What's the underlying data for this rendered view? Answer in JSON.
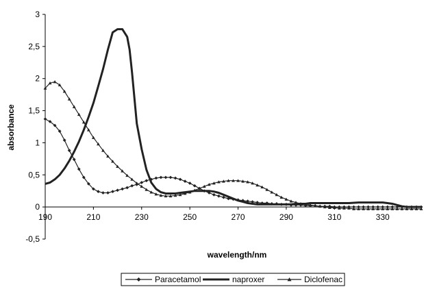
{
  "chart_data": {
    "type": "line",
    "title": "",
    "xlabel": "wavelength/nm",
    "ylabel": "absorbance",
    "xlim": [
      190,
      346
    ],
    "ylim": [
      -0.5,
      3
    ],
    "x_ticks": [
      "190",
      "210",
      "230",
      "250",
      "270",
      "290",
      "310",
      "330"
    ],
    "y_ticks": [
      "-0,5",
      "0",
      "0,5",
      "1",
      "1,5",
      "2",
      "2,5",
      "3"
    ],
    "grid": false,
    "legend_position": "bottom",
    "series": [
      {
        "name": "Paracetamol",
        "marker": "diamond",
        "x": [
          190,
          192,
          194,
          196,
          198,
          200,
          202,
          204,
          206,
          208,
          210,
          212,
          214,
          216,
          218,
          220,
          222,
          224,
          226,
          228,
          230,
          232,
          234,
          236,
          238,
          240,
          242,
          244,
          246,
          248,
          250,
          252,
          254,
          256,
          258,
          260,
          262,
          264,
          266,
          268,
          270,
          272,
          274,
          276,
          278,
          280,
          282,
          284,
          286,
          288,
          290,
          292,
          294,
          296,
          298,
          300,
          302,
          304,
          306,
          308,
          310,
          312,
          314,
          316,
          318,
          320,
          322,
          324,
          326,
          328,
          330,
          332,
          334,
          336,
          338,
          340,
          342,
          344,
          346
        ],
        "y": [
          1.37,
          1.33,
          1.27,
          1.18,
          1.04,
          0.88,
          0.74,
          0.59,
          0.46,
          0.36,
          0.28,
          0.24,
          0.22,
          0.22,
          0.24,
          0.26,
          0.28,
          0.3,
          0.33,
          0.35,
          0.38,
          0.41,
          0.43,
          0.45,
          0.46,
          0.46,
          0.46,
          0.45,
          0.43,
          0.4,
          0.37,
          0.33,
          0.29,
          0.25,
          0.22,
          0.19,
          0.17,
          0.15,
          0.13,
          0.12,
          0.11,
          0.1,
          0.09,
          0.08,
          0.07,
          0.06,
          0.06,
          0.05,
          0.05,
          0.04,
          0.04,
          0.03,
          0.03,
          0.03,
          0.02,
          0.02,
          0.02,
          0.01,
          0.01,
          0.01,
          0.0,
          0.0,
          0.0,
          0.0,
          0.0,
          0.0,
          0.0,
          0.0,
          0.0,
          0.0,
          0.0,
          0.0,
          0.0,
          0.0,
          0.0,
          0.0,
          0.0,
          0.0,
          0.0
        ]
      },
      {
        "name": "naproxer",
        "marker": "none",
        "x": [
          190,
          192,
          194,
          196,
          198,
          200,
          202,
          204,
          206,
          208,
          210,
          212,
          214,
          216,
          218,
          220,
          222,
          224,
          225,
          226,
          227,
          228,
          230,
          232,
          234,
          236,
          238,
          240,
          242,
          244,
          246,
          248,
          250,
          252,
          254,
          256,
          258,
          260,
          262,
          264,
          266,
          268,
          270,
          272,
          274,
          276,
          278,
          280,
          282,
          284,
          286,
          288,
          290,
          292,
          294,
          296,
          298,
          300,
          304,
          308,
          312,
          316,
          320,
          324,
          328,
          330,
          332,
          334,
          336,
          338,
          340,
          342,
          344,
          346
        ],
        "y": [
          0.36,
          0.38,
          0.43,
          0.5,
          0.6,
          0.72,
          0.86,
          1.02,
          1.2,
          1.4,
          1.62,
          1.88,
          2.15,
          2.45,
          2.72,
          2.77,
          2.77,
          2.65,
          2.45,
          2.1,
          1.7,
          1.3,
          0.9,
          0.58,
          0.38,
          0.28,
          0.23,
          0.21,
          0.21,
          0.21,
          0.22,
          0.23,
          0.24,
          0.25,
          0.25,
          0.25,
          0.25,
          0.24,
          0.22,
          0.19,
          0.16,
          0.13,
          0.1,
          0.08,
          0.06,
          0.05,
          0.04,
          0.04,
          0.04,
          0.04,
          0.04,
          0.04,
          0.04,
          0.04,
          0.05,
          0.05,
          0.05,
          0.06,
          0.06,
          0.06,
          0.06,
          0.06,
          0.07,
          0.07,
          0.07,
          0.07,
          0.06,
          0.05,
          0.03,
          0.01,
          0.0,
          0.0,
          0.0,
          0.0
        ]
      },
      {
        "name": "Diclofenac",
        "marker": "triangle",
        "x": [
          190,
          192,
          194,
          196,
          198,
          200,
          202,
          204,
          206,
          208,
          210,
          212,
          214,
          216,
          218,
          220,
          222,
          224,
          226,
          228,
          230,
          232,
          234,
          236,
          238,
          240,
          242,
          244,
          246,
          248,
          250,
          252,
          254,
          256,
          258,
          260,
          262,
          264,
          266,
          268,
          270,
          272,
          274,
          276,
          278,
          280,
          282,
          284,
          286,
          288,
          290,
          292,
          294,
          296,
          298,
          300,
          302,
          304,
          306,
          308,
          310,
          312,
          314,
          316,
          318,
          320,
          322,
          324,
          326,
          328,
          330,
          332,
          334,
          336,
          338,
          340,
          342,
          344,
          346
        ],
        "y": [
          1.85,
          1.93,
          1.95,
          1.9,
          1.8,
          1.68,
          1.56,
          1.44,
          1.32,
          1.2,
          1.08,
          0.98,
          0.88,
          0.79,
          0.71,
          0.63,
          0.56,
          0.49,
          0.43,
          0.37,
          0.32,
          0.27,
          0.23,
          0.2,
          0.18,
          0.17,
          0.17,
          0.18,
          0.19,
          0.21,
          0.23,
          0.26,
          0.29,
          0.32,
          0.35,
          0.37,
          0.39,
          0.4,
          0.41,
          0.41,
          0.41,
          0.4,
          0.39,
          0.37,
          0.34,
          0.31,
          0.27,
          0.23,
          0.19,
          0.15,
          0.12,
          0.09,
          0.07,
          0.05,
          0.04,
          0.03,
          0.02,
          0.01,
          0.0,
          -0.01,
          -0.01,
          -0.02,
          -0.02,
          -0.02,
          -0.03,
          -0.03,
          -0.03,
          -0.03,
          -0.03,
          -0.03,
          -0.03,
          -0.03,
          -0.03,
          -0.03,
          -0.03,
          -0.03,
          -0.03,
          -0.03,
          -0.03
        ]
      }
    ]
  }
}
